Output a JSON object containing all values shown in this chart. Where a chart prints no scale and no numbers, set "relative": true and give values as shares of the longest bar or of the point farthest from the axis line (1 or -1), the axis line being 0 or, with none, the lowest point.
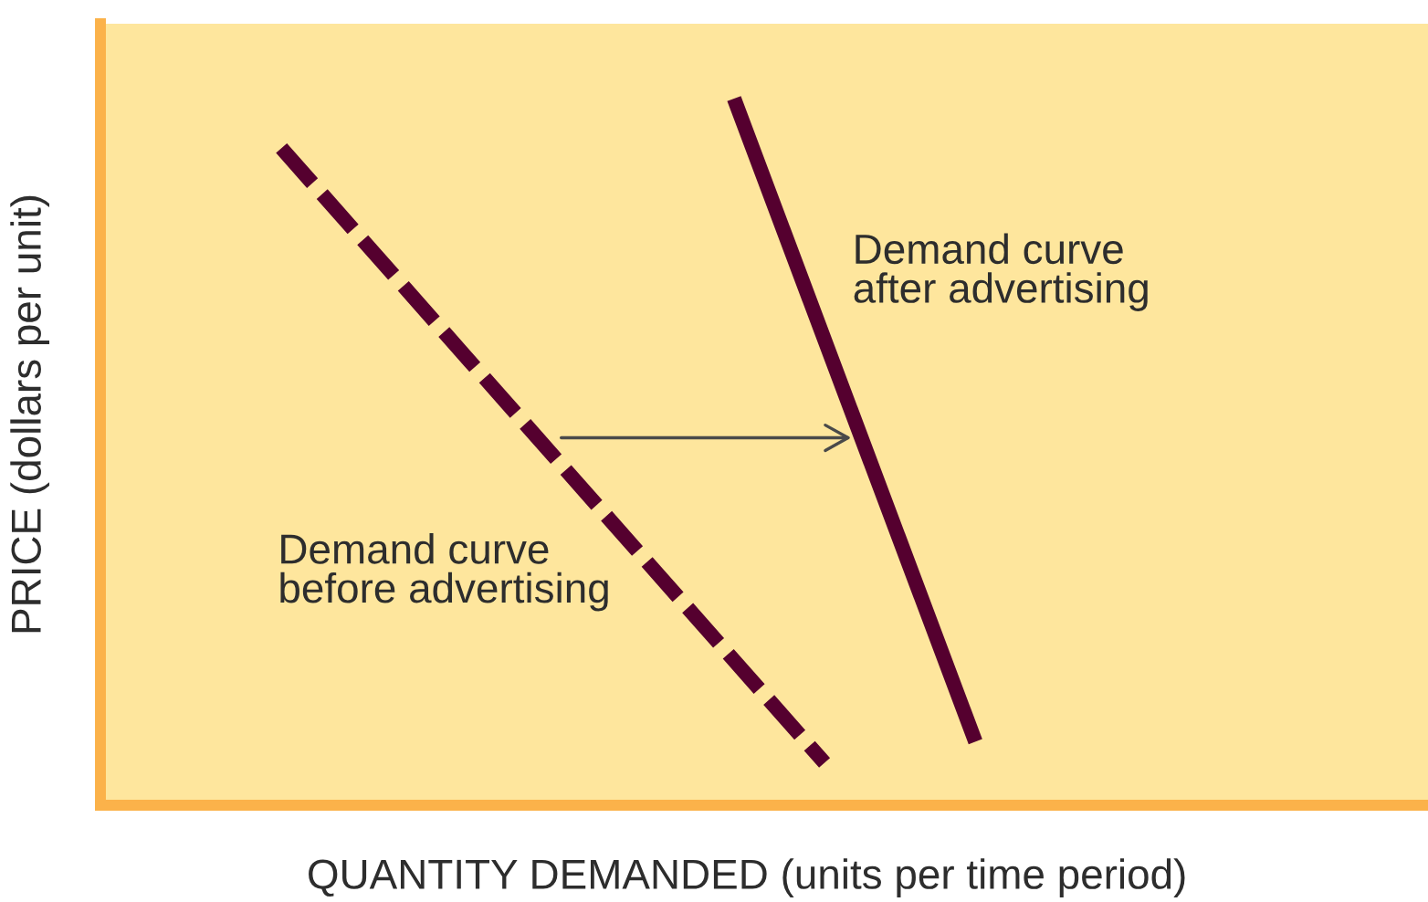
{
  "chart_data": {
    "type": "line",
    "relative": true,
    "xlabel": "QUANTITY DEMANDED (units per time period)",
    "ylabel": "PRICE (dollars per unit)",
    "categories": [
      null,
      null,
      null,
      null,
      null,
      null,
      null,
      null,
      null,
      null,
      null,
      null,
      null,
      null,
      null,
      null,
      null,
      null,
      null,
      null,
      null,
      null,
      null,
      null,
      null,
      null,
      null,
      null,
      null,
      null,
      null,
      null,
      null,
      null,
      null,
      null,
      null,
      null,
      null,
      null,
      null,
      null,
      null,
      null,
      null
    ],
    "series": [
      {
        "name": "Demand curve\nbefore advertising",
        "color": "#55002f",
        "line_style": "dashed",
        "values": [
          null,
          null,
          null,
          null,
          null,
          null,
          0.93,
          null,
          null,
          null,
          null,
          null,
          null,
          null,
          null,
          null,
          null,
          null,
          null,
          null,
          null,
          null,
          null,
          null,
          0.06,
          null,
          null,
          null,
          null,
          null,
          null,
          null,
          null,
          null,
          null,
          null,
          null,
          null,
          null,
          null,
          null,
          null,
          null,
          null,
          null
        ]
      },
      {
        "name": "Demand curve\nafter advertising",
        "color": "#55002f",
        "line_style": "solid",
        "values": [
          null,
          null,
          null,
          null,
          null,
          null,
          null,
          null,
          null,
          null,
          null,
          null,
          null,
          null,
          null,
          null,
          null,
          null,
          null,
          null,
          null,
          1,
          null,
          null,
          null,
          null,
          null,
          null,
          null,
          0.09,
          null,
          null,
          null,
          null,
          null,
          null,
          null,
          null,
          null,
          null,
          null,
          null,
          null,
          null,
          null
        ]
      }
    ]
  }
}
